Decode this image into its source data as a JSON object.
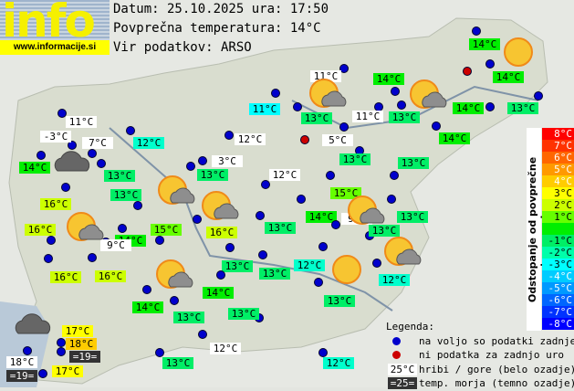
{
  "logo": {
    "word": "info",
    "url": "www.informacije.si"
  },
  "header": {
    "date_line": "Datum: 25.10.2025 ura: 17:50",
    "avg_line": "Povprečna temperatura: 14°C",
    "source_line": "Vir podatkov: ARSO"
  },
  "colors": {
    "station_dot": "#0000cc",
    "no_data_dot": "#cc0000",
    "mountain_bg": "#ffffff",
    "sea_bg": "#333333"
  },
  "stations": [
    {
      "temp": "11°C",
      "bg": "mountain"
    },
    {
      "temp": "-3°C",
      "bg": "mountain"
    },
    {
      "temp": "7°C",
      "bg": "mountain"
    },
    {
      "temp": "12°C",
      "bg": "#00ffcc"
    },
    {
      "temp": "14°C",
      "bg": "#00ee00"
    },
    {
      "temp": "13°C",
      "bg": "#00ee66"
    },
    {
      "temp": "11°C",
      "bg": "#00ffff"
    },
    {
      "temp": "12°C",
      "bg": "mountain"
    },
    {
      "temp": "3°C",
      "bg": "mountain"
    },
    {
      "temp": "13°C",
      "bg": "#00ee66"
    },
    {
      "temp": "12°C",
      "bg": "mountain"
    },
    {
      "temp": "11°C",
      "bg": "mountain"
    },
    {
      "temp": "13°C",
      "bg": "#00ee66"
    },
    {
      "temp": "11°C",
      "bg": "mountain"
    },
    {
      "temp": "5°C",
      "bg": "mountain"
    },
    {
      "temp": "13°C",
      "bg": "#00ee66"
    },
    {
      "temp": "14°C",
      "bg": "#00ee00"
    },
    {
      "temp": "13°C",
      "bg": "#00ee66"
    },
    {
      "temp": "14°C",
      "bg": "#00ee00"
    },
    {
      "temp": "14°C",
      "bg": "#00ee00"
    },
    {
      "temp": "14°C",
      "bg": "#00ee00"
    },
    {
      "temp": "13°C",
      "bg": "#00ee66"
    },
    {
      "temp": "14°C",
      "bg": "#00ee00"
    },
    {
      "temp": "13°C",
      "bg": "#00ee66"
    },
    {
      "temp": "13°C",
      "bg": "#00ee66"
    },
    {
      "temp": "16°C",
      "bg": "#ccff00"
    },
    {
      "temp": "16°C",
      "bg": "#ccff00"
    },
    {
      "temp": "14°C",
      "bg": "#00ee00"
    },
    {
      "temp": "15°C",
      "bg": "#66ff00"
    },
    {
      "temp": "16°C",
      "bg": "#ccff00"
    },
    {
      "temp": "13°C",
      "bg": "#00ee66"
    },
    {
      "temp": "9°C",
      "bg": "mountain"
    },
    {
      "temp": "16°C",
      "bg": "#ccff00"
    },
    {
      "temp": "16°C",
      "bg": "#ccff00"
    },
    {
      "temp": "13°C",
      "bg": "#00ee66"
    },
    {
      "temp": "13°C",
      "bg": "#00ee66"
    },
    {
      "temp": "14°C",
      "bg": "#00ee00"
    },
    {
      "temp": "13°C",
      "bg": "#00ee66"
    },
    {
      "temp": "14°C",
      "bg": "#00ee00"
    },
    {
      "temp": "13°C",
      "bg": "#00ee66"
    },
    {
      "temp": "15°C",
      "bg": "#66ff00"
    },
    {
      "temp": "14°C",
      "bg": "#00ee00"
    },
    {
      "temp": "9°C",
      "bg": "mountain"
    },
    {
      "temp": "13°C",
      "bg": "#00ee66"
    },
    {
      "temp": "13°C",
      "bg": "#00ee66"
    },
    {
      "temp": "12°C",
      "bg": "#00ffcc"
    },
    {
      "temp": "12°C",
      "bg": "#00ffcc"
    },
    {
      "temp": "13°C",
      "bg": "#00ee66"
    },
    {
      "temp": "12°C",
      "bg": "mountain"
    },
    {
      "temp": "13°C",
      "bg": "#00ee66"
    },
    {
      "temp": "12°C",
      "bg": "#00ffcc"
    },
    {
      "temp": "17°C",
      "bg": "#ffff00"
    },
    {
      "temp": "18°C",
      "bg": "#ffcc00"
    },
    {
      "temp": "=19=",
      "bg": "sea"
    },
    {
      "temp": "18°C",
      "bg": "mountain"
    },
    {
      "temp": "=19=",
      "bg": "sea"
    },
    {
      "temp": "17°C",
      "bg": "#ffff00"
    }
  ],
  "weather_icons": [
    "partly-cloudy-icon",
    "partly-cloudy-icon",
    "partly-cloudy-icon",
    "partly-cloudy-icon",
    "partly-cloudy-icon",
    "partly-cloudy-icon",
    "partly-cloudy-icon",
    "partly-cloudy-icon",
    "sun-icon",
    "sun-icon",
    "cloud-icon",
    "cloud-icon"
  ],
  "scale": {
    "title": "Odstopanje od povprečne temperature:",
    "steps": [
      {
        "label": "8°C",
        "color": "#ff0000"
      },
      {
        "label": "7°C",
        "color": "#ff3300"
      },
      {
        "label": "6°C",
        "color": "#ff6600"
      },
      {
        "label": "5°C",
        "color": "#ff9900"
      },
      {
        "label": "4°C",
        "color": "#ffcc00"
      },
      {
        "label": "3°C",
        "color": "#ffff00"
      },
      {
        "label": "2°C",
        "color": "#ccff00"
      },
      {
        "label": "1°C",
        "color": "#66ff00"
      },
      {
        "label": "",
        "color": "#00ee00"
      },
      {
        "label": "-1°C",
        "color": "#00ee66"
      },
      {
        "label": "-2°C",
        "color": "#00ffaa"
      },
      {
        "label": "-3°C",
        "color": "#00ffff"
      },
      {
        "label": "-4°C",
        "color": "#00ccff"
      },
      {
        "label": "-5°C",
        "color": "#0099ff"
      },
      {
        "label": "-6°C",
        "color": "#0066ff"
      },
      {
        "label": "-7°C",
        "color": "#0033ff"
      },
      {
        "label": "-8°C",
        "color": "#0000ff"
      }
    ]
  },
  "legend": {
    "title": "Legenda:",
    "available": "na voljo so podatki zadnje ure",
    "no_data": "ni podatka za zadnjo uro",
    "mountain_sample": "25°C",
    "mountain_text": "hribi / gore (belo ozadje)",
    "sea_sample": "=25=",
    "sea_text": "temp. morja (temno ozadje)"
  }
}
